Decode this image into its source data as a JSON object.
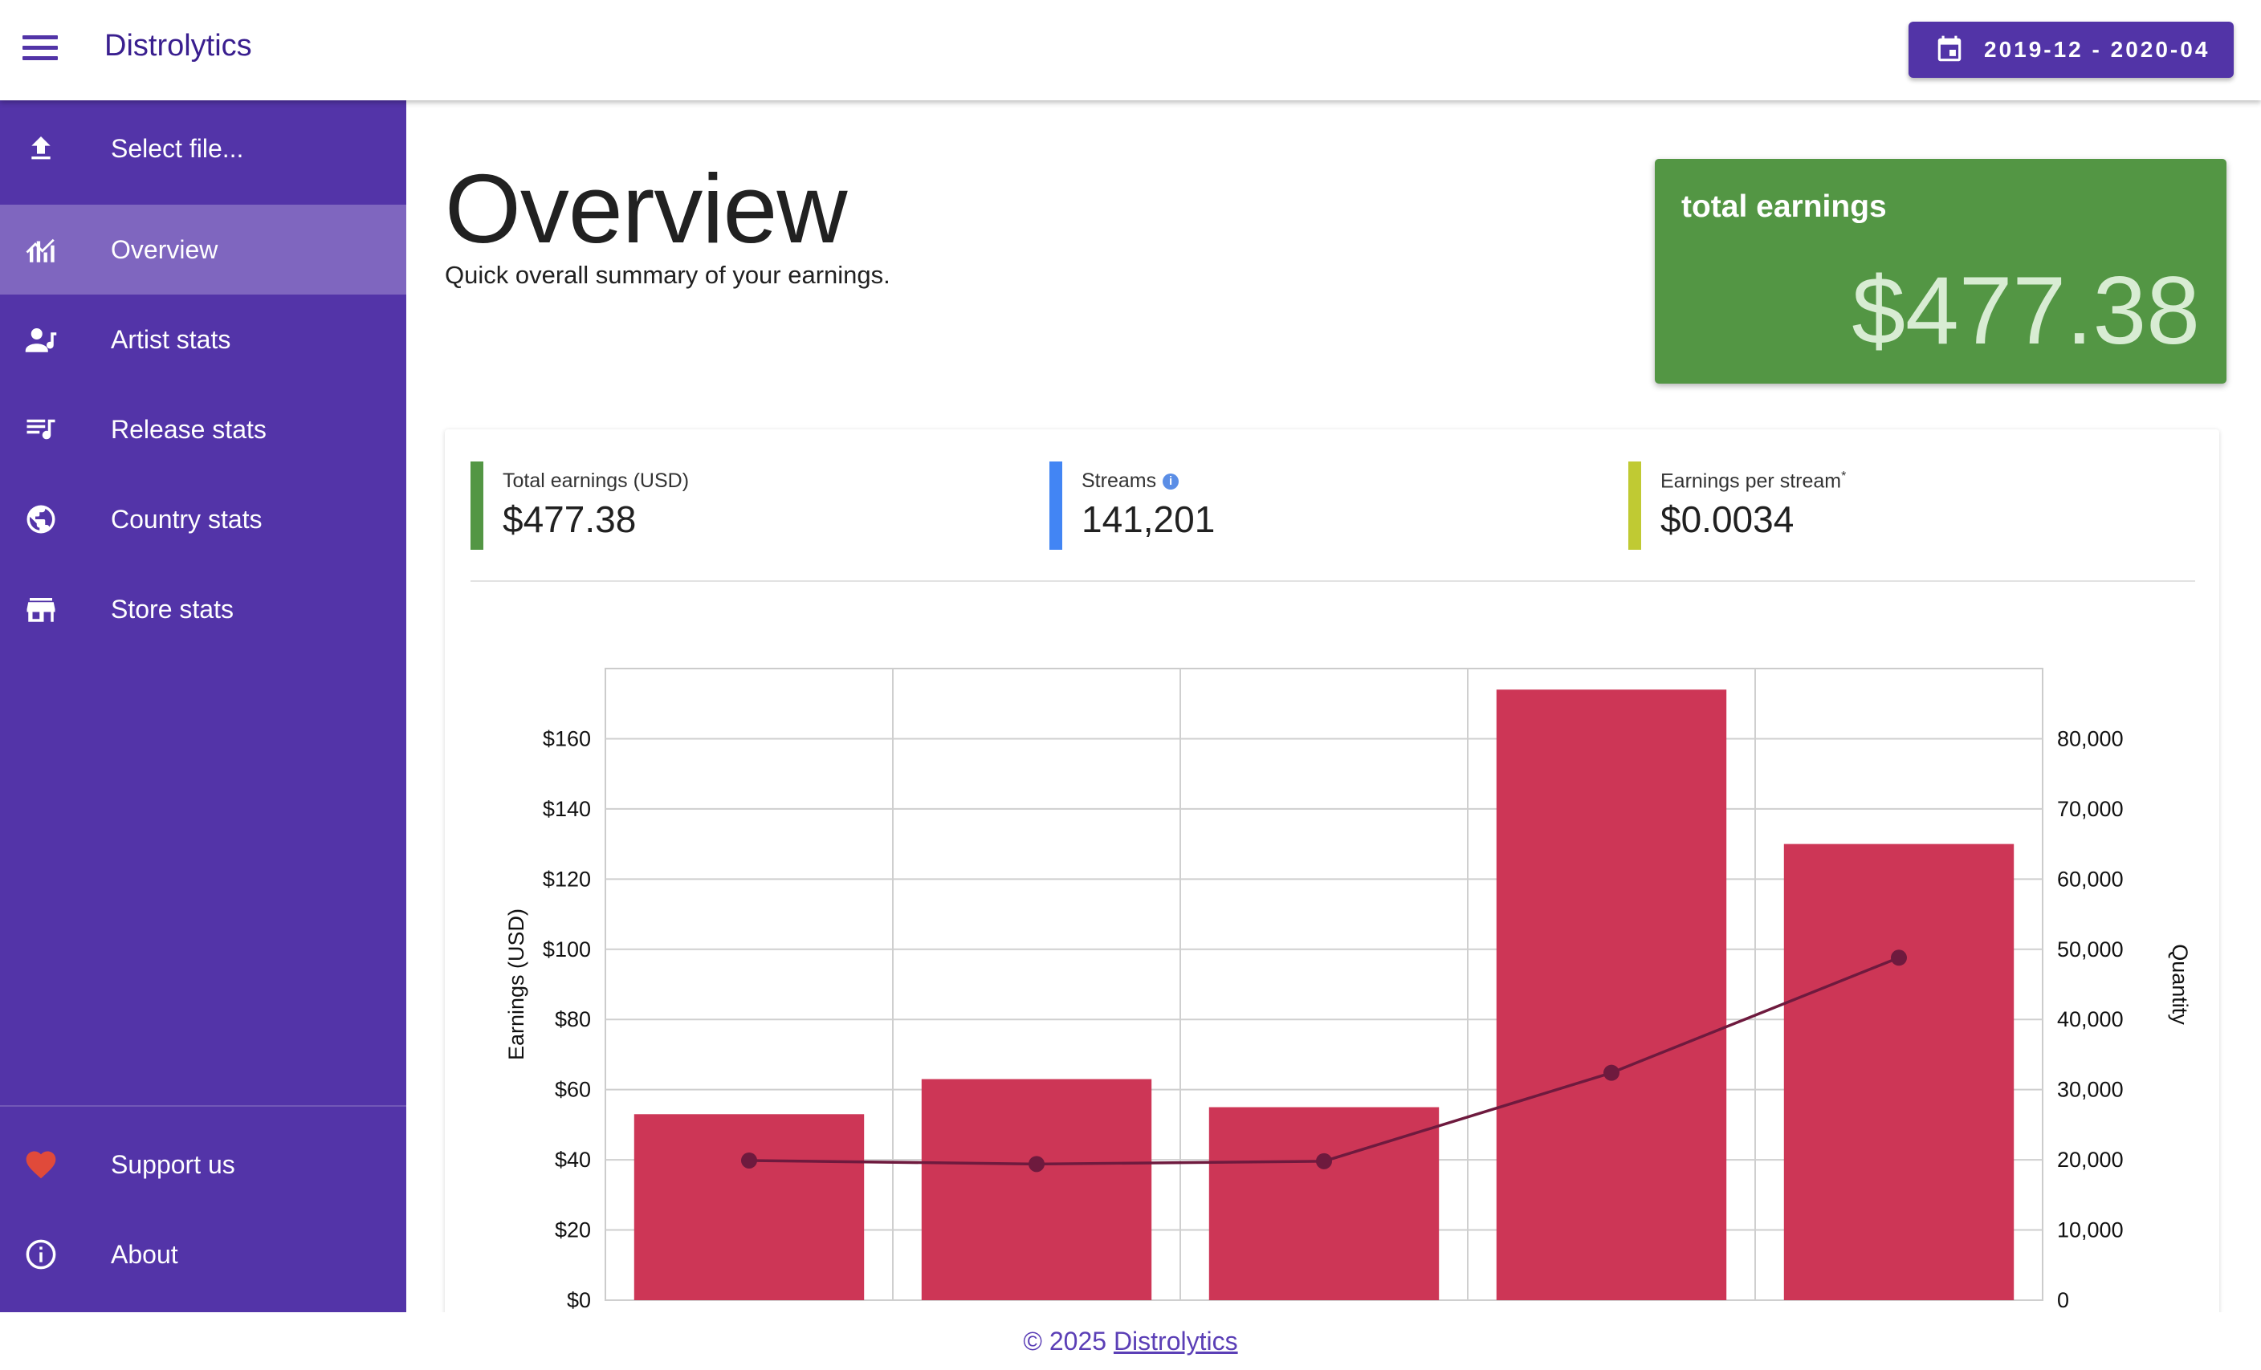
{
  "app": {
    "title": "Distrolytics"
  },
  "header": {
    "date_range": "2019-12 - 2020-04"
  },
  "sidebar": {
    "items": [
      {
        "label": "Select file...",
        "icon": "upload-icon"
      },
      {
        "label": "Overview",
        "icon": "chart-icon",
        "active": true
      },
      {
        "label": "Artist stats",
        "icon": "artist-icon"
      },
      {
        "label": "Release stats",
        "icon": "playlist-icon"
      },
      {
        "label": "Country stats",
        "icon": "globe-icon"
      },
      {
        "label": "Store stats",
        "icon": "store-icon"
      }
    ],
    "bottom_items": [
      {
        "label": "Support us",
        "icon": "heart-icon"
      },
      {
        "label": "About",
        "icon": "info-icon"
      }
    ]
  },
  "page": {
    "title": "Overview",
    "subtitle": "Quick overall summary of your earnings."
  },
  "earnings_card": {
    "label": "total earnings",
    "value": "$477.38"
  },
  "stats": [
    {
      "label": "Total earnings (USD)",
      "value": "$477.38",
      "color": "#539644"
    },
    {
      "label": "Streams",
      "value": "141,201",
      "color": "#4285f4",
      "info": "i"
    },
    {
      "label": "Earnings per stream",
      "marker": "*",
      "value": "$0.0034",
      "color": "#c0ca33"
    }
  ],
  "colors": {
    "accent": "#5234a7",
    "sidebar": "#5334a8",
    "bar": "#cd3656",
    "line": "#6e1a3e",
    "card_green": "#539644"
  },
  "chart_data": {
    "type": "bar",
    "ylabel": "Earnings (USD)",
    "y2label": "Quantity",
    "ylim": [
      0,
      180
    ],
    "y2lim": [
      0,
      90000
    ],
    "yticks": [
      0,
      20,
      40,
      60,
      80,
      100,
      120,
      140,
      160
    ],
    "ytick_labels": [
      "$0",
      "$20",
      "$40",
      "$60",
      "$80",
      "$100",
      "$120",
      "$140",
      "$160"
    ],
    "y2ticks": [
      0,
      10000,
      20000,
      30000,
      40000,
      50000,
      60000,
      70000,
      80000
    ],
    "y2tick_labels": [
      "0",
      "10,000",
      "20,000",
      "30,000",
      "40,000",
      "50,000",
      "60,000",
      "70,000",
      "80,000"
    ],
    "bar_values": [
      53,
      63,
      55,
      174,
      130
    ],
    "line_values": [
      19900,
      19400,
      19800,
      32400,
      48800
    ],
    "grid": true
  },
  "footer": {
    "prefix": "© 2025 ",
    "link": "Distrolytics"
  }
}
